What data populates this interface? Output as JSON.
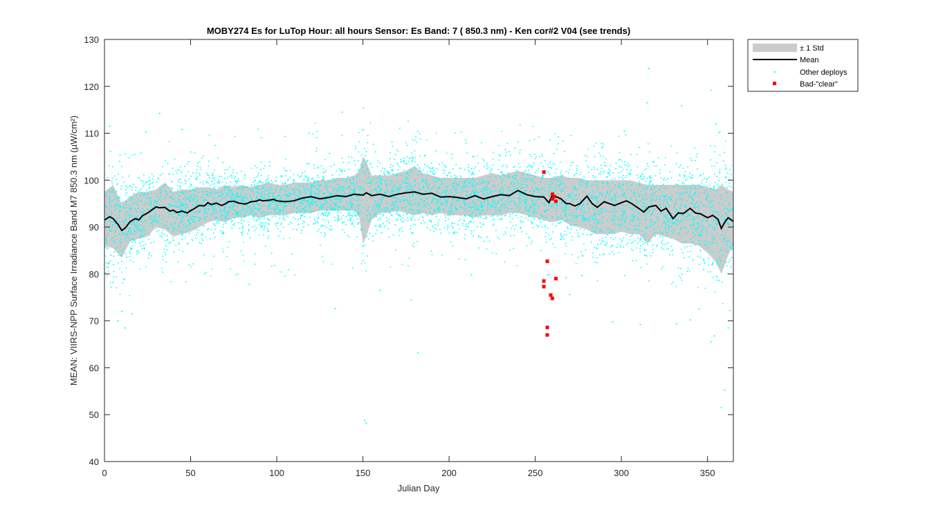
{
  "chart_data": {
    "type": "scatter",
    "title": "MOBY274   Es for LuTop  Hour: all hours  Sensor: Es Band: 7 ( 850.3 nm)  - Ken cor#2 V04 (see trends)",
    "xlabel": "Julian Day",
    "ylabel": "MEAN: VIIRS-NPP Surface Irradiance Band M7 850.3 nm (µW/cm²)",
    "xlim": [
      0,
      365
    ],
    "ylim": [
      40,
      130
    ],
    "xticks": [
      0,
      50,
      100,
      150,
      200,
      250,
      300,
      350
    ],
    "yticks": [
      40,
      50,
      60,
      70,
      80,
      90,
      100,
      110,
      120,
      130
    ],
    "grid": false,
    "legend_position": "outside-top-right",
    "legend": [
      "± 1 Std",
      "Mean",
      "Other deploys",
      "Bad-\"clear\""
    ],
    "colors": {
      "std_band": "#cccccc",
      "mean": "#000000",
      "other": "#00ffff",
      "bad": "#ff0000"
    },
    "series": [
      {
        "name": "± 1 Std",
        "kind": "band",
        "x": [
          0,
          5,
          10,
          15,
          20,
          25,
          30,
          35,
          40,
          45,
          50,
          55,
          60,
          65,
          70,
          75,
          80,
          85,
          90,
          95,
          100,
          105,
          110,
          115,
          120,
          125,
          130,
          135,
          140,
          145,
          148,
          150,
          152,
          155,
          160,
          165,
          170,
          175,
          180,
          185,
          190,
          195,
          200,
          205,
          210,
          215,
          220,
          225,
          230,
          235,
          240,
          245,
          250,
          255,
          260,
          265,
          270,
          275,
          280,
          285,
          290,
          295,
          300,
          305,
          310,
          315,
          320,
          325,
          330,
          335,
          340,
          345,
          350,
          355,
          358,
          362,
          365
        ],
        "upper": [
          97.5,
          99,
          95,
          96.5,
          97.5,
          97.5,
          98,
          99.5,
          97.5,
          98,
          98,
          98.5,
          98.5,
          98,
          99,
          98.5,
          99,
          98.5,
          99,
          99.5,
          99,
          99,
          99.5,
          99.5,
          99.5,
          100,
          100,
          100.5,
          100.5,
          101,
          102,
          105,
          104,
          101,
          101,
          101,
          101.5,
          102,
          103,
          101.5,
          101,
          100.5,
          100.5,
          100.5,
          100.5,
          100.5,
          101,
          101.5,
          101,
          101.5,
          102,
          101.5,
          101,
          100.5,
          100.5,
          101,
          100.5,
          100.5,
          100,
          100,
          100,
          100,
          100,
          100,
          99.5,
          99,
          99,
          99,
          99,
          99,
          99,
          99,
          98.5,
          98,
          99,
          98,
          97.5
        ],
        "lower": [
          86,
          85.5,
          83.5,
          87,
          87.5,
          88,
          90,
          89.5,
          88,
          88.5,
          89,
          90,
          91,
          91.5,
          91,
          92,
          92,
          92.5,
          92,
          92.5,
          92.5,
          92.5,
          93,
          93,
          93,
          93.5,
          93.5,
          93.5,
          93.5,
          93.5,
          92,
          86.5,
          88,
          91.5,
          93,
          93,
          93.5,
          93,
          92.5,
          93,
          92.5,
          93,
          92.5,
          92.5,
          92.5,
          92,
          92.5,
          92.5,
          92.5,
          93,
          93,
          92.5,
          92,
          91.5,
          91,
          91.5,
          90.5,
          90,
          89.5,
          88.5,
          88.5,
          88.5,
          89,
          88.5,
          88.5,
          86.5,
          88.5,
          88,
          87.5,
          86.5,
          86.5,
          86,
          84.5,
          82.5,
          80,
          84,
          86
        ]
      },
      {
        "name": "Mean",
        "kind": "line",
        "x": [
          0,
          3,
          5,
          8,
          10,
          12,
          15,
          18,
          20,
          22,
          25,
          28,
          30,
          32,
          35,
          38,
          40,
          42,
          45,
          48,
          50,
          52,
          55,
          58,
          60,
          62,
          65,
          68,
          70,
          72,
          75,
          78,
          80,
          82,
          85,
          88,
          90,
          92,
          95,
          98,
          100,
          105,
          110,
          115,
          120,
          125,
          130,
          135,
          140,
          145,
          150,
          152,
          155,
          160,
          165,
          170,
          175,
          180,
          185,
          190,
          195,
          200,
          205,
          210,
          215,
          220,
          225,
          230,
          235,
          240,
          245,
          250,
          255,
          258,
          260,
          262,
          265,
          268,
          270,
          273,
          276,
          280,
          283,
          286,
          290,
          293,
          296,
          300,
          303,
          306,
          310,
          313,
          316,
          320,
          323,
          326,
          330,
          333,
          336,
          340,
          343,
          346,
          350,
          353,
          356,
          358,
          360,
          362,
          365
        ],
        "y": [
          91.5,
          92.2,
          91.8,
          90.5,
          89.3,
          89.8,
          91.2,
          91.8,
          91.5,
          92.4,
          93,
          93.8,
          94.3,
          94.1,
          94.2,
          93.4,
          93.6,
          93.1,
          93.4,
          93.0,
          93.5,
          93.9,
          94.6,
          94.5,
          95.2,
          94.8,
          95.1,
          94.6,
          94.9,
          95.4,
          95.5,
          95.1,
          95.0,
          94.9,
          95.4,
          95.5,
          95.8,
          95.6,
          95.7,
          95.9,
          95.6,
          95.4,
          95.6,
          96.2,
          96.5,
          96.0,
          96.3,
          96.7,
          96.5,
          97.0,
          96.8,
          97.3,
          96.7,
          97.0,
          96.5,
          97.0,
          97.3,
          97.5,
          97.0,
          97.2,
          96.4,
          96.5,
          96.3,
          96.0,
          96.7,
          96.0,
          96.5,
          96.9,
          96.7,
          97.8,
          96.9,
          96.5,
          96.4,
          95.2,
          96.9,
          96.5,
          96.0,
          95.0,
          95.0,
          94.5,
          95.0,
          96.6,
          95.0,
          94.2,
          95.4,
          95.0,
          94.6,
          95.2,
          95.6,
          95.0,
          94.0,
          93.2,
          94.3,
          94.6,
          93.4,
          94.0,
          91.8,
          93.0,
          92.9,
          94.0,
          93.0,
          92.8,
          92.0,
          92.5,
          91.7,
          89.7,
          91.0,
          92.0,
          91.2
        ]
      },
      {
        "name": "Other deploys",
        "kind": "scatter",
        "note_points": "dense cloud; generated between band limits with outliers",
        "outliers": [
          [
            3,
            111.5
          ],
          [
            24,
            110.3
          ],
          [
            32,
            114.2
          ],
          [
            45,
            110.8
          ],
          [
            138,
            114.5
          ],
          [
            151,
            48.8
          ],
          [
            152,
            48.2
          ],
          [
            160,
            76.5
          ],
          [
            178,
            74.5
          ],
          [
            182,
            63.2
          ],
          [
            213,
            79.8
          ],
          [
            316,
            123.8
          ],
          [
            315,
            116.5
          ],
          [
            335,
            115.8
          ],
          [
            352,
            119.2
          ],
          [
            355,
            112
          ],
          [
            358,
            51.5
          ],
          [
            360,
            55.2
          ],
          [
            352,
            65.5
          ],
          [
            354,
            66.8
          ],
          [
            10,
            72
          ],
          [
            16,
            71.5
          ],
          [
            12,
            68.5
          ],
          [
            8,
            70
          ],
          [
            5,
            78.2
          ],
          [
            84,
            77.8
          ],
          [
            134,
            72.6
          ],
          [
            295,
            69.8
          ],
          [
            332,
            69.4
          ],
          [
            340,
            70.2
          ],
          [
            345,
            72.5
          ],
          [
            311,
            69.2
          ],
          [
            362,
            68.5
          ],
          [
            363,
            72.2
          ],
          [
            270,
            75.6
          ],
          [
            268,
            79.2
          ]
        ]
      },
      {
        "name": "Bad-\"clear\"",
        "kind": "scatter",
        "x": [
          255,
          255,
          255,
          257,
          257,
          257,
          259,
          260,
          260,
          261,
          262,
          262,
          260
        ],
        "y": [
          101.7,
          78.5,
          77.3,
          82.7,
          68.6,
          67.0,
          75.5,
          74.8,
          97.0,
          96.5,
          95.5,
          79.0,
          96.0
        ]
      }
    ]
  }
}
